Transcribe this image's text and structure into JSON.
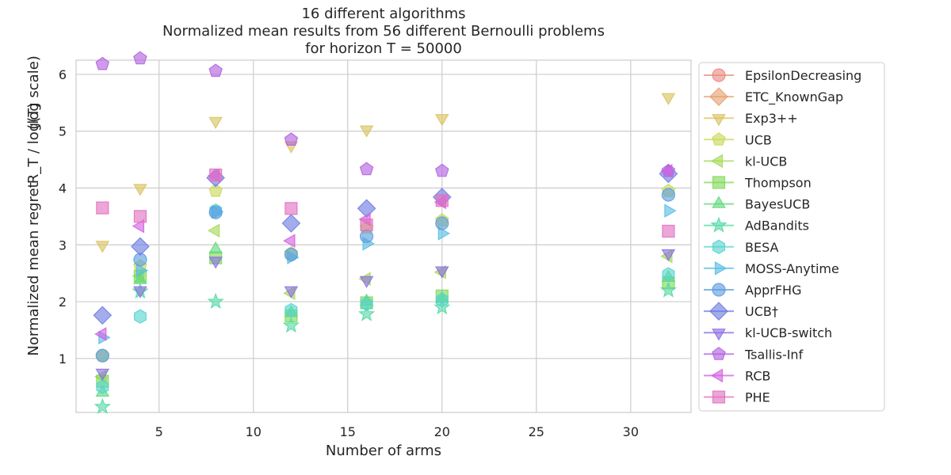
{
  "chart_data": {
    "type": "scatter",
    "title_lines": [
      "16 different algorithms",
      "Normalized mean results from 56 different Bernoulli problems",
      "for horizon T = 50000"
    ],
    "xlabel": "Number of arms",
    "ylabel": "Normalized mean regret",
    "ylabel_fraction": "R_T / log(T)",
    "ylabel_suffix": "(log scale)",
    "xlim": [
      0.6,
      33.2
    ],
    "ylim": [
      0.05,
      6.25
    ],
    "xticks": [
      5,
      10,
      15,
      20,
      25,
      30
    ],
    "yticks": [
      1,
      2,
      3,
      4,
      5,
      6
    ],
    "grid": true,
    "legend_position": "right",
    "series": [
      {
        "name": "EpsilonDecreasing",
        "color": "#e8897f",
        "marker": "circle",
        "x": [],
        "y": []
      },
      {
        "name": "ETC_KnownGap",
        "color": "#e6a070",
        "marker": "diamond",
        "x": [],
        "y": []
      },
      {
        "name": "Exp3++",
        "color": "#d9c25c",
        "marker": "triangle-down",
        "x": [
          2,
          4,
          8,
          12,
          16,
          20,
          32
        ],
        "y": [
          3.0,
          4.0,
          5.18,
          4.75,
          5.03,
          5.23,
          5.6
        ]
      },
      {
        "name": "UCB",
        "color": "#c9d957",
        "marker": "pentagon",
        "x": [
          2,
          4,
          8,
          12,
          16,
          20,
          32
        ],
        "y": [
          1.05,
          2.62,
          3.95,
          2.85,
          3.3,
          3.43,
          3.95
        ]
      },
      {
        "name": "kl-UCB",
        "color": "#a5d957",
        "marker": "triangle-left",
        "x": [
          2,
          4,
          8,
          12,
          16,
          20,
          32
        ],
        "y": [
          0.68,
          2.45,
          3.25,
          2.15,
          2.4,
          2.52,
          2.8
        ]
      },
      {
        "name": "Thompson",
        "color": "#7fd957",
        "marker": "square",
        "x": [
          2,
          4,
          8,
          12,
          16,
          20,
          32
        ],
        "y": [
          0.6,
          2.45,
          2.77,
          1.75,
          1.98,
          2.1,
          2.33
        ]
      },
      {
        "name": "BayesUCB",
        "color": "#5fd97a",
        "marker": "triangle-up",
        "x": [
          2,
          4,
          8,
          12,
          16,
          20,
          32
        ],
        "y": [
          0.4,
          2.38,
          2.92,
          1.8,
          2.0,
          2.05,
          2.42
        ]
      },
      {
        "name": "AdBandits",
        "color": "#55d9a5",
        "marker": "star",
        "x": [
          2,
          4,
          8,
          12,
          16,
          20,
          32
        ],
        "y": [
          0.15,
          2.18,
          2.0,
          1.58,
          1.78,
          1.9,
          2.2
        ]
      },
      {
        "name": "BESA",
        "color": "#55d4d0",
        "marker": "hexagon",
        "x": [
          2,
          4,
          8,
          12,
          16,
          20,
          32
        ],
        "y": [
          0.5,
          1.74,
          3.6,
          1.85,
          1.96,
          2.03,
          2.48
        ]
      },
      {
        "name": "MOSS-Anytime",
        "color": "#55bce6",
        "marker": "triangle-right",
        "x": [
          2,
          4,
          8,
          12,
          16,
          20,
          32
        ],
        "y": [
          1.37,
          2.55,
          3.58,
          2.78,
          3.02,
          3.2,
          3.6
        ]
      },
      {
        "name": "ApprFHG",
        "color": "#5a9be0",
        "marker": "circle",
        "x": [
          2,
          4,
          8,
          12,
          16,
          20,
          32
        ],
        "y": [
          1.05,
          2.74,
          3.57,
          2.83,
          3.15,
          3.38,
          3.88
        ]
      },
      {
        "name": "UCB†",
        "color": "#6c7be0",
        "marker": "diamond",
        "x": [
          2,
          4,
          8,
          12,
          16,
          20,
          32
        ],
        "y": [
          1.76,
          2.97,
          4.18,
          3.38,
          3.64,
          3.84,
          4.25
        ]
      },
      {
        "name": "kl-UCB-switch",
        "color": "#8a6ee0",
        "marker": "triangle-down",
        "x": [
          2,
          4,
          8,
          12,
          16,
          20,
          32
        ],
        "y": [
          0.75,
          2.2,
          2.72,
          2.2,
          2.38,
          2.55,
          2.85
        ]
      },
      {
        "name": "Tsallis-Inf",
        "color": "#b25fe0",
        "marker": "pentagon",
        "x": [
          2,
          4,
          8,
          12,
          16,
          20,
          32
        ],
        "y": [
          6.18,
          6.28,
          6.06,
          4.85,
          4.33,
          4.3,
          4.3
        ]
      },
      {
        "name": "RCB",
        "color": "#d45fe0",
        "marker": "triangle-left",
        "x": [
          2,
          4,
          8,
          12,
          16,
          20,
          32
        ],
        "y": [
          1.43,
          3.33,
          4.22,
          3.07,
          3.45,
          3.75,
          4.3
        ]
      },
      {
        "name": "PHE",
        "color": "#e070c0",
        "marker": "square",
        "x": [
          2,
          4,
          8,
          12,
          16,
          20,
          32
        ],
        "y": [
          3.65,
          3.5,
          4.23,
          3.64,
          3.35,
          3.78,
          3.24
        ]
      }
    ]
  }
}
